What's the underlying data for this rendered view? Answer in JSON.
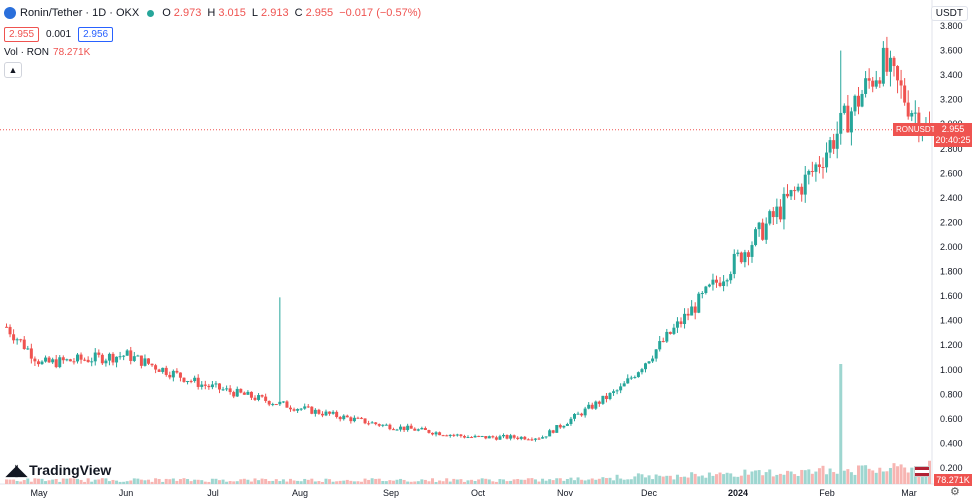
{
  "header": {
    "symbol_title": "Ronin/Tether · 1D · OKX",
    "ohlc": {
      "o_label": "O",
      "o": "2.973",
      "h_label": "H",
      "h": "3.015",
      "l_label": "L",
      "l": "2.913",
      "c_label": "C",
      "c": "2.955",
      "change": "−0.017 (−0.57%)"
    },
    "sell_price": "2.955",
    "spread": "0.001",
    "buy_price": "2.956",
    "vol_label": "Vol · RON",
    "vol_value": "78.271K"
  },
  "currency_button": "USDT",
  "logo_text": "TradingView",
  "price_label": {
    "symbol": "RONUSDT",
    "price": "2.955",
    "countdown": "20:40:25"
  },
  "volume_label": "78.271K",
  "colors": {
    "up": "#26a69a",
    "down": "#ef5350",
    "up_vol": "#9ed6d0",
    "down_vol": "#f7b5b2"
  },
  "chart_data": {
    "type": "candlestick",
    "ylim": [
      0.2,
      3.8
    ],
    "y_ticks": [
      "3.800",
      "3.600",
      "3.400",
      "3.200",
      "3.000",
      "2.800",
      "2.600",
      "2.400",
      "2.200",
      "2.000",
      "1.800",
      "1.600",
      "1.400",
      "1.200",
      "1.000",
      "0.800",
      "0.600",
      "0.400",
      "0.200"
    ],
    "x_ticks": [
      "May",
      "Jun",
      "Jul",
      "Aug",
      "Sep",
      "Oct",
      "Nov",
      "Dec",
      "2024",
      "Feb",
      "Mar"
    ],
    "last_price": 2.955,
    "series": [
      {
        "price": 1.35,
        "note": "late Apr"
      },
      {
        "price": 1.05,
        "note": "May"
      },
      {
        "price": 1.12,
        "note": "Jun"
      },
      {
        "price": 0.88,
        "note": "Jul"
      },
      {
        "price": 0.7,
        "note": "Aug"
      },
      {
        "price": 0.55,
        "note": "Sep"
      },
      {
        "price": 0.45,
        "note": "Oct"
      },
      {
        "price": 0.45,
        "note": "Nov"
      },
      {
        "price": 0.85,
        "note": "Dec"
      },
      {
        "price": 1.85,
        "note": "2024"
      },
      {
        "price": 2.6,
        "note": "Feb"
      },
      {
        "price": 3.5,
        "note": "Feb peak"
      },
      {
        "price": 2.955,
        "note": "Mar"
      }
    ]
  }
}
